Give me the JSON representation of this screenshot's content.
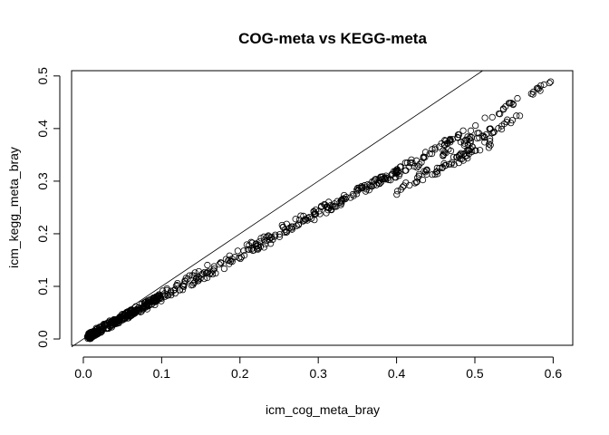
{
  "chart_data": {
    "type": "scatter",
    "title": "COG-meta vs KEGG-meta",
    "xlabel": "icm_cog_meta_bray",
    "ylabel": "icm_kegg_meta_bray",
    "xlim": [
      -0.015,
      0.625
    ],
    "ylim": [
      -0.012,
      0.51
    ],
    "xticks": [
      0.0,
      0.1,
      0.2,
      0.3,
      0.4,
      0.5,
      0.6
    ],
    "xtick_labels": [
      "0.0",
      "0.1",
      "0.2",
      "0.3",
      "0.4",
      "0.5",
      "0.6"
    ],
    "yticks": [
      0.0,
      0.1,
      0.2,
      0.3,
      0.4,
      0.5
    ],
    "ytick_labels": [
      "0.0",
      "0.1",
      "0.2",
      "0.3",
      "0.4",
      "0.5"
    ],
    "grid": false,
    "reference_line": {
      "intercept": 0,
      "slope": 1
    },
    "point_groups": [
      {
        "x_start": 0.005,
        "x_end": 0.6,
        "n": 230,
        "slope": 0.82,
        "intercept": 0.0,
        "curve": -0.01,
        "jitter": 0.006
      },
      {
        "x_start": 0.005,
        "x_end": 0.56,
        "n": 230,
        "slope": 0.745,
        "intercept": 0.0,
        "curve": 0.02,
        "jitter": 0.008
      },
      {
        "x_start": 0.005,
        "x_end": 0.1,
        "n": 220,
        "slope": 0.82,
        "intercept": 0.0,
        "curve": 0.0,
        "jitter": 0.006
      },
      {
        "x_start": 0.4,
        "x_end": 0.52,
        "n": 70,
        "slope": 0.76,
        "intercept": -0.02,
        "curve": 0.0,
        "jitter": 0.01
      }
    ]
  }
}
